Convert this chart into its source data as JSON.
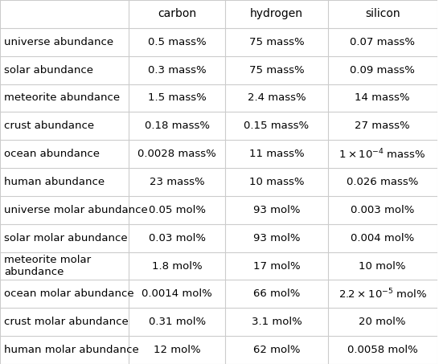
{
  "columns": [
    "carbon",
    "hydrogen",
    "silicon"
  ],
  "rows": [
    "universe abundance",
    "solar abundance",
    "meteorite abundance",
    "crust abundance",
    "ocean abundance",
    "human abundance",
    "universe molar abundance",
    "solar molar abundance",
    "meteorite molar\nabundance",
    "ocean molar abundance",
    "crust molar abundance",
    "human molar abundance"
  ],
  "cells": [
    [
      "0.5 mass%",
      "75 mass%",
      "0.07 mass%"
    ],
    [
      "0.3 mass%",
      "75 mass%",
      "0.09 mass%"
    ],
    [
      "1.5 mass%",
      "2.4 mass%",
      "14 mass%"
    ],
    [
      "0.18 mass%",
      "0.15 mass%",
      "27 mass%"
    ],
    [
      "0.0028 mass%",
      "11 mass%",
      "$1\\times10^{-4}$ mass%"
    ],
    [
      "23 mass%",
      "10 mass%",
      "0.026 mass%"
    ],
    [
      "0.05 mol%",
      "93 mol%",
      "0.003 mol%"
    ],
    [
      "0.03 mol%",
      "93 mol%",
      "0.004 mol%"
    ],
    [
      "1.8 mol%",
      "17 mol%",
      "10 mol%"
    ],
    [
      "0.0014 mol%",
      "66 mol%",
      "$2.2\\times10^{-5}$ mol%"
    ],
    [
      "0.31 mol%",
      "3.1 mol%",
      "20 mol%"
    ],
    [
      "12 mol%",
      "62 mol%",
      "0.0058 mol%"
    ]
  ],
  "bg_color": "#ffffff",
  "header_bg": "#ffffff",
  "grid_color": "#cccccc",
  "text_color": "#000000",
  "font_size": 9.5,
  "header_font_size": 10
}
